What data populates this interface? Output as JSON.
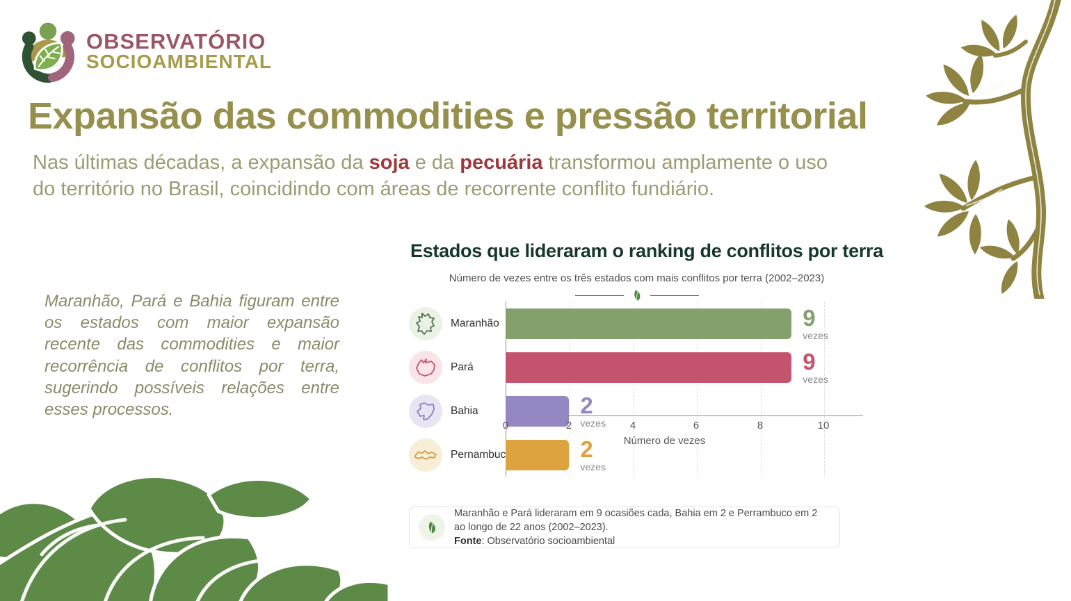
{
  "brand": {
    "line1": "OBSERVATÓRIO",
    "line2": "SOCIOAMBIENTAL",
    "color_line1": "#9a5666",
    "color_line2": "#a59b48"
  },
  "header": {
    "title": "Expansão das commodities e pressão territorial",
    "title_color": "#97904c",
    "intro_prefix": "Nas últimas décadas, a expansão da ",
    "intro_bold1": "soja",
    "intro_mid": " e da ",
    "intro_bold2": "pecuária",
    "intro_suffix": " transformou amplamente o uso do território no Brasil, coincidindo com áreas de recorrente conflito fundiário.",
    "accent_color": "#9c3a3c"
  },
  "aside": {
    "text": "Maranhão, Pará e Bahia figuram entre os estados com maior expansão recente das commodities e maior recorrência de conflitos por terra, sugerindo possíveis relações entre esses processos."
  },
  "chart_data": {
    "type": "bar",
    "orientation": "horizontal",
    "title": "Estados que lideraram o ranking de conflitos por terra",
    "title_color": "#16382b",
    "subtitle": "Número de vezes entre os três estados com mais conflitos por terra (2002–2023)",
    "categories": [
      "Maranhão",
      "Pará",
      "Bahia",
      "Pernambuco"
    ],
    "values": [
      9,
      9,
      2,
      2
    ],
    "unit": "vezes",
    "xlabel": "Número de vezes",
    "xlim": [
      0,
      10
    ],
    "xticks": [
      0,
      2,
      4,
      6,
      8,
      10
    ],
    "grid": "dashed-vertical",
    "legend": "none",
    "rows": [
      {
        "label": "Maranhão",
        "value": 9,
        "unit": "vezes",
        "color": "#84a16d"
      },
      {
        "label": "Pará",
        "value": 9,
        "unit": "vezes",
        "color": "#c4536d"
      },
      {
        "label": "Bahia",
        "value": 2,
        "unit": "vezes",
        "color": "#9587c1"
      },
      {
        "label": "Pernambuco",
        "value": 2,
        "unit": "vezes",
        "color": "#dda33f"
      }
    ],
    "footnote_line1": "Maranhão e Pará lideraram em 9 ocasiões cada, Bahia em 2 e Perrambuco em 2",
    "footnote_line2": "ao longo de 22 anos (2002–2023).",
    "source_label": "Fonte",
    "source_text": ": Observatório socioambiental"
  }
}
